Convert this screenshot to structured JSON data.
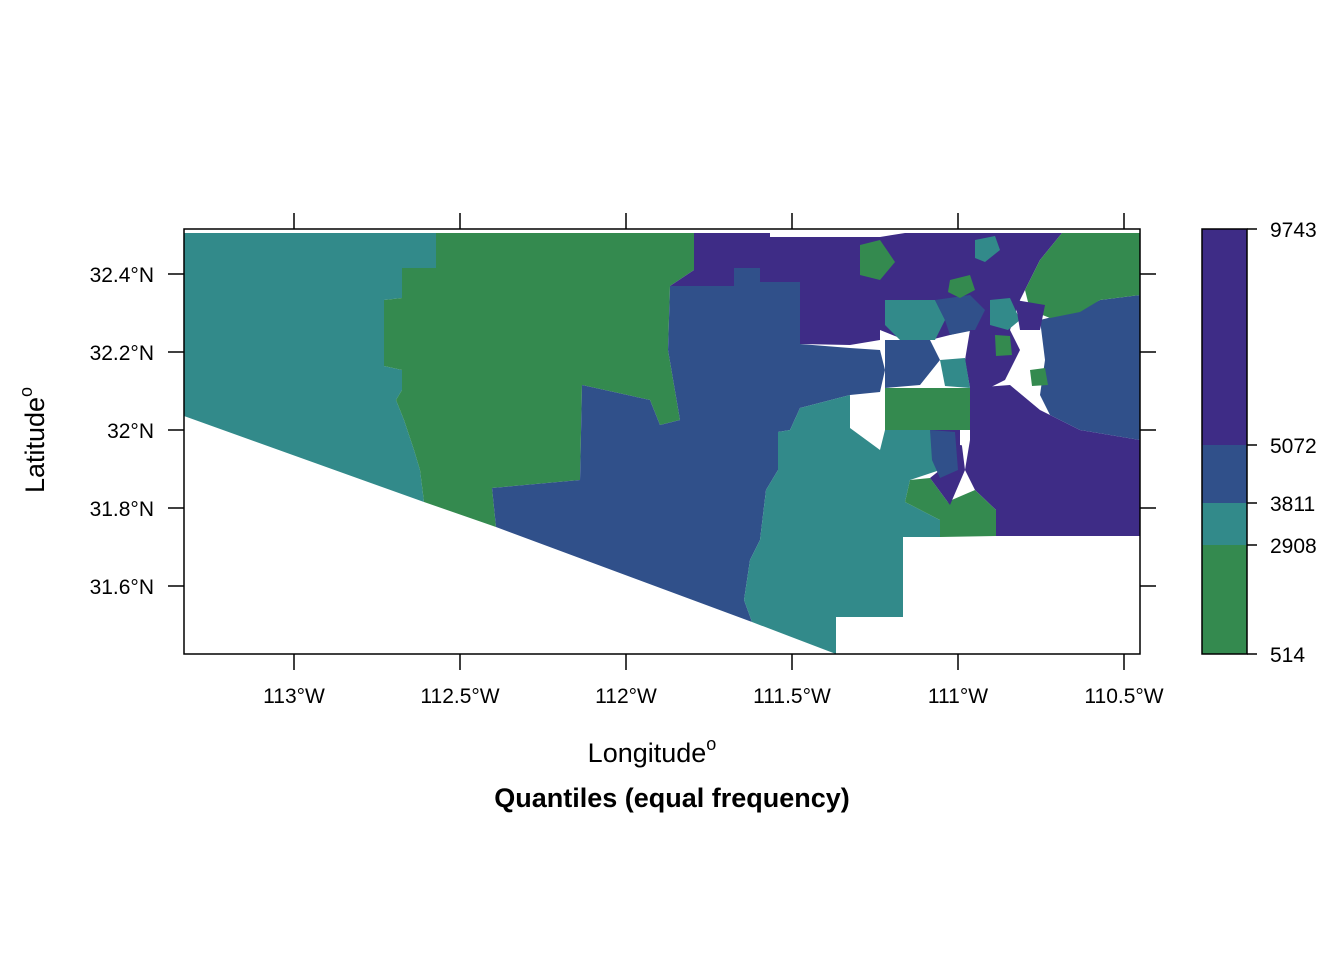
{
  "map": {
    "xlabel": "Longitude",
    "xlabel_sup": "o",
    "ylabel": "Latitude",
    "ylabel_sup": "o",
    "title": "Quantiles (equal frequency)",
    "x_ticks": [
      "113°W",
      "112.5°W",
      "112°W",
      "111.5°W",
      "111°W",
      "110.5°W"
    ],
    "y_ticks": [
      "32.4°N",
      "32.2°N",
      "32°N",
      "31.8°N",
      "31.6°N"
    ]
  },
  "legend": {
    "breaks": [
      "9743",
      "5072",
      "3811",
      "2908",
      "514"
    ]
  },
  "colors": {
    "class1": "#348A4F",
    "class2": "#328A8A",
    "class3": "#30508A",
    "class4": "#3E2C86",
    "frame": "#000000"
  }
}
